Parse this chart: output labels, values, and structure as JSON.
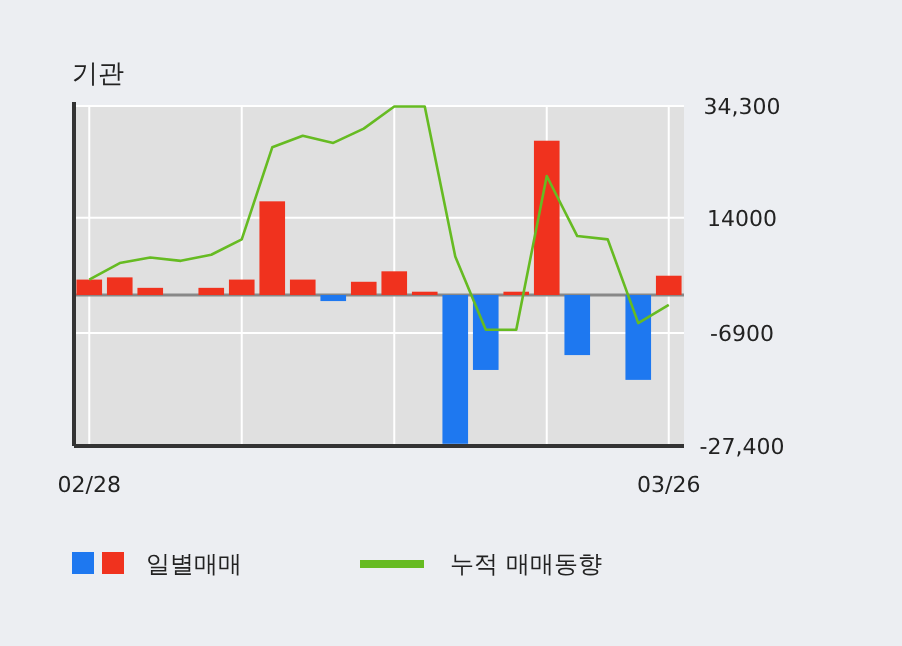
{
  "chart_data": {
    "type": "bar",
    "title": "기관",
    "categories": [
      "02/28",
      null,
      null,
      null,
      null,
      null,
      null,
      null,
      null,
      null,
      null,
      null,
      null,
      null,
      null,
      null,
      null,
      null,
      null,
      "03/26"
    ],
    "series": [
      {
        "name": "일별매매",
        "colors": [
          "#f0321e",
          "#f0321e",
          "#f0321e",
          "#f0321e",
          "#f0321e",
          "#f0321e",
          "#f0321e",
          "#f0321e",
          "#1e78f0",
          "#f0321e",
          "#f0321e",
          "#f0321e",
          "#1e78f0",
          "#1e78f0",
          "#f0321e",
          "#f0321e",
          "#1e78f0",
          "#f0321e",
          "#1e78f0",
          "#f0321e"
        ],
        "values": [
          2800,
          3200,
          1300,
          0,
          1300,
          2800,
          17000,
          2800,
          -1100,
          2400,
          4300,
          600,
          -27000,
          -13600,
          600,
          28000,
          -10900,
          0,
          -15400,
          3500
        ]
      },
      {
        "name": "누적 매매동향",
        "type": "line",
        "color": "#66bb22",
        "values": [
          2800,
          5800,
          6800,
          6200,
          7300,
          10100,
          26800,
          28900,
          27600,
          30200,
          34200,
          34200,
          7000,
          -6300,
          -6300,
          21600,
          10700,
          10100,
          -5100,
          -1800
        ]
      }
    ],
    "ylim": [
      -27400,
      34300
    ],
    "yticks": [
      {
        "value": 34300,
        "label": "34,300"
      },
      {
        "value": 14000,
        "label": "14000"
      },
      {
        "value": -6900,
        "label": "-6900"
      },
      {
        "value": -27400,
        "label": "-27,400"
      }
    ],
    "grid": true,
    "legend": "bottom"
  }
}
